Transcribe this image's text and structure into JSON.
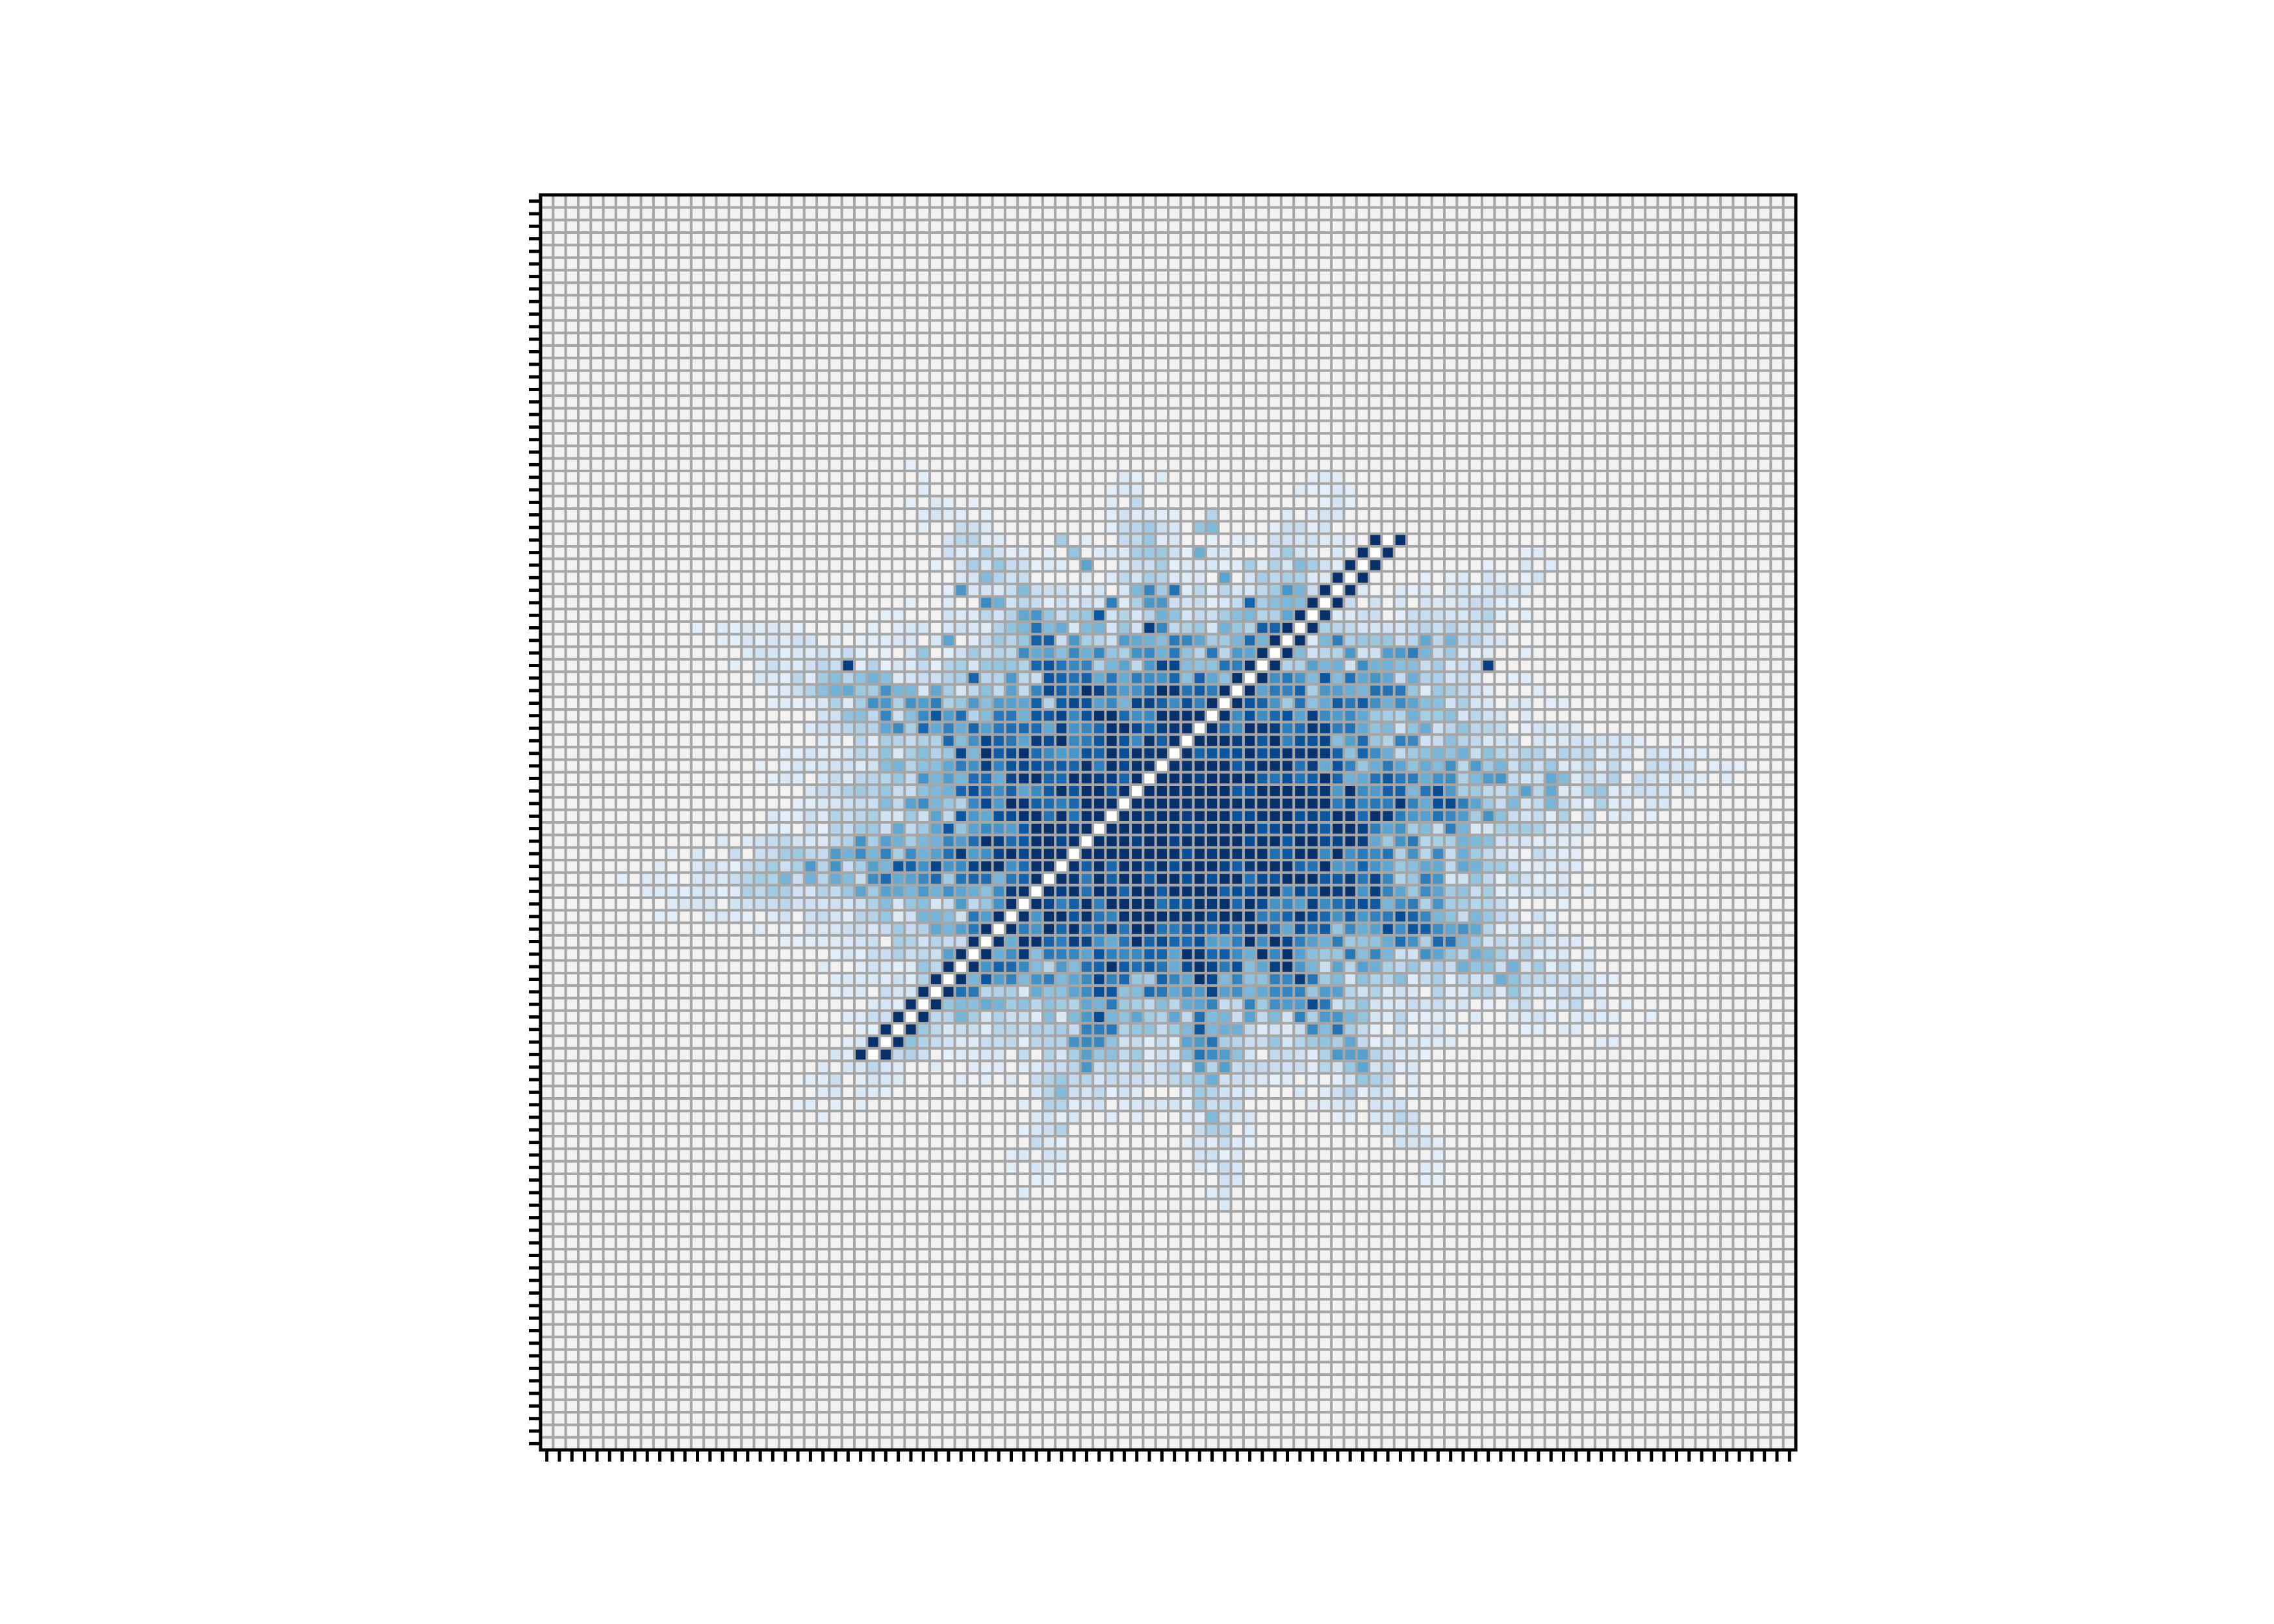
{
  "chart_data": {
    "type": "heatmap",
    "rows": 100,
    "cols": 100,
    "colormap": [
      "#f7fbff",
      "#deebf7",
      "#c6dbef",
      "#9ecae1",
      "#6baed6",
      "#4292c6",
      "#2171b5",
      "#08519c",
      "#08306b"
    ],
    "gridline_color": "#a6a6a6",
    "background_color": "#f2f2f2",
    "diagonal_color": "#ffffff",
    "title": "",
    "xlabel": "",
    "ylabel": "",
    "tick_labels_shown": false,
    "grid": true,
    "values": [
      {
        "row": 25,
        "col": 53,
        "v": 0.3
      },
      {
        "row": 26,
        "col": 52,
        "v": 0.4
      },
      {
        "row": 26,
        "col": 53,
        "v": 0.45
      },
      {
        "row": 27,
        "col": 41,
        "v": 0.35
      },
      {
        "row": 27,
        "col": 46,
        "v": 0.25
      },
      {
        "row": 27,
        "col": 59,
        "v": 0.2
      },
      {
        "row": 28,
        "col": 42,
        "v": 0.4
      },
      {
        "row": 28,
        "col": 49,
        "v": 0.3
      },
      {
        "row": 28,
        "col": 52,
        "v": 0.5
      },
      {
        "row": 29,
        "col": 43,
        "v": 0.55
      },
      {
        "row": 29,
        "col": 56,
        "v": 0.35
      },
      {
        "row": 30,
        "col": 36,
        "v": 0.3
      },
      {
        "row": 30,
        "col": 54,
        "v": 0.55
      },
      {
        "row": 31,
        "col": 33,
        "v": 0.6
      },
      {
        "row": 31,
        "col": 47,
        "v": 0.45
      },
      {
        "row": 31,
        "col": 50,
        "v": 0.75
      },
      {
        "row": 32,
        "col": 35,
        "v": 0.65
      },
      {
        "row": 32,
        "col": 45,
        "v": 0.7
      },
      {
        "row": 32,
        "col": 56,
        "v": 0.8
      },
      {
        "row": 33,
        "col": 44,
        "v": 0.85
      },
      {
        "row": 33,
        "col": 60,
        "v": 0.55
      },
      {
        "row": 34,
        "col": 39,
        "v": 0.75
      },
      {
        "row": 34,
        "col": 48,
        "v": 0.95
      },
      {
        "row": 35,
        "col": 32,
        "v": 0.55
      },
      {
        "row": 35,
        "col": 63,
        "v": 0.7
      },
      {
        "row": 36,
        "col": 30,
        "v": 0.4
      },
      {
        "row": 36,
        "col": 64,
        "v": 0.6
      },
      {
        "row": 37,
        "col": 24,
        "v": 0.95
      },
      {
        "row": 37,
        "col": 75,
        "v": 0.95
      },
      {
        "row": 38,
        "col": 34,
        "v": 0.8
      },
      {
        "row": 38,
        "col": 62,
        "v": 0.85
      },
      {
        "row": 39,
        "col": 40,
        "v": 0.9
      },
      {
        "row": 40,
        "col": 31,
        "v": 0.7
      },
      {
        "row": 40,
        "col": 68,
        "v": 0.65
      },
      {
        "row": 41,
        "col": 33,
        "v": 0.6
      },
      {
        "row": 42,
        "col": 64,
        "v": 0.75
      },
      {
        "row": 43,
        "col": 38,
        "v": 0.55
      },
      {
        "row": 44,
        "col": 35,
        "v": 0.65
      },
      {
        "row": 44,
        "col": 63,
        "v": 0.7
      },
      {
        "row": 45,
        "col": 45,
        "v": 0.85
      },
      {
        "row": 45,
        "col": 58,
        "v": 0.55
      },
      {
        "row": 46,
        "col": 52,
        "v": 0.6
      },
      {
        "row": 47,
        "col": 36,
        "v": 0.45
      },
      {
        "row": 47,
        "col": 61,
        "v": 0.65
      },
      {
        "row": 48,
        "col": 41,
        "v": 0.7
      },
      {
        "row": 48,
        "col": 48,
        "v": 0.8
      },
      {
        "row": 49,
        "col": 55,
        "v": 0.5
      },
      {
        "row": 50,
        "col": 32,
        "v": 0.85
      },
      {
        "row": 50,
        "col": 66,
        "v": 0.7
      },
      {
        "row": 51,
        "col": 43,
        "v": 0.4
      },
      {
        "row": 51,
        "col": 57,
        "v": 0.45
      },
      {
        "row": 52,
        "col": 50,
        "v": 0.35
      },
      {
        "row": 53,
        "col": 40,
        "v": 0.3
      },
      {
        "row": 53,
        "col": 63,
        "v": 0.25
      },
      {
        "row": 54,
        "col": 34,
        "v": 0.7
      },
      {
        "row": 54,
        "col": 53,
        "v": 0.35
      },
      {
        "row": 55,
        "col": 58,
        "v": 0.2
      }
    ],
    "diagonal": {
      "from": {
        "row": 27,
        "col": 67
      },
      "to": {
        "row": 68,
        "col": 32
      },
      "v": 1.0
    }
  }
}
